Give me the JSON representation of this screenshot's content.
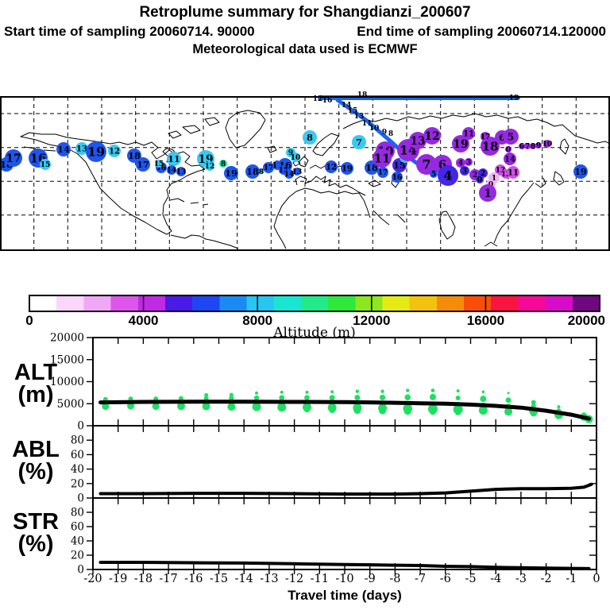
{
  "header": {
    "title": "Retroplume summary for Shangdianzi_200607",
    "start_text": "Start time of sampling 20060714. 90000",
    "end_text": "End time of sampling 20060714.120000",
    "met_text": "Meteorological data used is ECMWF"
  },
  "colorbar": {
    "title": "Altitude (m)",
    "min": 0,
    "max": 20000,
    "tick_values": [
      0,
      4000,
      8000,
      12000,
      16000,
      20000
    ],
    "tick_labels": [
      "0",
      "4000",
      "8000",
      "12000",
      "16000",
      "20000"
    ],
    "divider_values": [
      4000,
      8000,
      12000,
      16000
    ],
    "segments": [
      "#ffffff",
      "#fad6fa",
      "#f0a8f4",
      "#dd55ea",
      "#c02ae4",
      "#4a1ae6",
      "#1e46f2",
      "#1a8af4",
      "#28c4f2",
      "#18e6d2",
      "#20ea8a",
      "#2ee83c",
      "#8ee61e",
      "#e6ea14",
      "#f4c20c",
      "#f48c08",
      "#f84e0a",
      "#fa1440",
      "#f80898",
      "#d80cc8",
      "#6e087e"
    ]
  },
  "map": {
    "bubble_colors": {
      "B": "#1e55ee",
      "C": "#38c9f2",
      "P": "#9628e2",
      "I": "#4326e6",
      "M": "#cf4fe8",
      "K": "#efb6f3",
      "G": "#12e6a4"
    },
    "bubbles": [
      [
        "18",
        8,
        207,
        9,
        "B"
      ],
      [
        "17",
        17,
        199,
        11,
        "B"
      ],
      [
        "16",
        48,
        199,
        12,
        "B"
      ],
      [
        "15",
        57,
        207,
        7,
        "C"
      ],
      [
        "14",
        80,
        188,
        9,
        "B"
      ],
      [
        "13",
        103,
        187,
        8,
        "C"
      ],
      [
        "19",
        121,
        191,
        13,
        "B"
      ],
      [
        "12",
        144,
        190,
        8,
        "C"
      ],
      [
        "18",
        169,
        196,
        9,
        "B"
      ],
      [
        "17",
        180,
        207,
        9,
        "B"
      ],
      [
        "11",
        219,
        200,
        9,
        "C"
      ],
      [
        "16",
        203,
        211,
        7,
        "B"
      ],
      [
        "15",
        200,
        206,
        5,
        "C"
      ],
      [
        "14",
        216,
        214,
        6,
        "B"
      ],
      [
        "13",
        228,
        216,
        6,
        "B"
      ],
      [
        "19",
        259,
        200,
        11,
        "C"
      ],
      [
        "12",
        264,
        209,
        6,
        "C"
      ],
      [
        "8",
        281,
        206,
        5,
        "G"
      ],
      [
        "19",
        291,
        218,
        9,
        "B"
      ],
      [
        "18",
        318,
        216,
        9,
        "B"
      ],
      [
        "8",
        329,
        216,
        3,
        "G"
      ],
      [
        "17",
        338,
        211,
        7,
        "B"
      ],
      [
        "11",
        349,
        208,
        6,
        "B"
      ],
      [
        "16",
        359,
        208,
        9,
        "B"
      ],
      [
        "15",
        357,
        214,
        6,
        "B"
      ],
      [
        "14",
        364,
        219,
        6,
        "B"
      ],
      [
        "13",
        374,
        216,
        5,
        "B"
      ],
      [
        "9",
        366,
        192,
        6,
        "C"
      ],
      [
        "10",
        372,
        198,
        6,
        "C"
      ],
      [
        "8",
        390,
        173,
        9,
        "C"
      ],
      [
        "12",
        417,
        210,
        8,
        "B"
      ],
      [
        "19",
        437,
        212,
        8,
        "B"
      ],
      [
        "7",
        452,
        179,
        9,
        "C"
      ],
      [
        "18",
        468,
        211,
        9,
        "B"
      ],
      [
        "17",
        482,
        217,
        7,
        "B"
      ],
      [
        "10",
        485,
        190,
        12,
        "P"
      ],
      [
        "11",
        481,
        199,
        12,
        "P"
      ],
      [
        "15",
        503,
        208,
        9,
        "I"
      ],
      [
        "16",
        500,
        223,
        7,
        "B"
      ],
      [
        "5",
        510,
        198,
        7,
        "C"
      ],
      [
        "14",
        514,
        189,
        14,
        "P"
      ],
      [
        "13",
        526,
        177,
        11,
        "P"
      ],
      [
        "12",
        544,
        171,
        11,
        "P"
      ],
      [
        "7",
        537,
        207,
        13,
        "P"
      ],
      [
        "6",
        557,
        207,
        12,
        "P"
      ],
      [
        "5",
        546,
        219,
        5,
        "B"
      ],
      [
        "4",
        564,
        221,
        13,
        "I"
      ],
      [
        "4",
        580,
        205,
        6,
        "P"
      ],
      [
        "3",
        590,
        204,
        5,
        "P"
      ],
      [
        "3",
        585,
        215,
        6,
        "I"
      ],
      [
        "2",
        598,
        220,
        7,
        "P"
      ],
      [
        "19",
        580,
        181,
        11,
        "P"
      ],
      [
        "11",
        590,
        168,
        8,
        "P"
      ],
      [
        "18",
        617,
        184,
        12,
        "P"
      ],
      [
        "17",
        611,
        172,
        6,
        "P"
      ],
      [
        "6",
        632,
        173,
        9,
        "P"
      ],
      [
        "5",
        643,
        172,
        10,
        "P"
      ],
      [
        "0",
        640,
        188,
        4,
        "P"
      ],
      [
        "6",
        657,
        184,
        4,
        "P"
      ],
      [
        "7",
        664,
        184,
        4,
        "P"
      ],
      [
        "8",
        671,
        184,
        4,
        "P"
      ],
      [
        "9",
        678,
        183,
        4,
        "P"
      ],
      [
        "10",
        689,
        181,
        5,
        "P"
      ],
      [
        "14",
        642,
        200,
        8,
        "P"
      ],
      [
        "13",
        630,
        214,
        7,
        "M"
      ],
      [
        "12",
        637,
        219,
        6,
        "M"
      ],
      [
        "11",
        646,
        217,
        8,
        "M"
      ],
      [
        "2",
        608,
        218,
        6,
        "I"
      ],
      [
        "1",
        622,
        224,
        7,
        "K"
      ],
      [
        "0",
        618,
        232,
        6,
        "K"
      ],
      [
        "1",
        614,
        243,
        11,
        "P"
      ],
      [
        "0",
        604,
        226,
        5,
        "I"
      ],
      [
        "19",
        731,
        216,
        9,
        "B"
      ]
    ],
    "trajectory": {
      "color": "#1b64ee",
      "main": [
        [
          403,
          123
        ],
        [
          652,
          123
        ]
      ],
      "branch": [
        [
          425,
          126
        ],
        [
          445,
          140
        ],
        [
          462,
          152
        ],
        [
          478,
          166
        ],
        [
          492,
          178
        ],
        [
          505,
          190
        ],
        [
          516,
          199
        ],
        [
          527,
          207
        ],
        [
          538,
          214
        ]
      ],
      "labels": [
        [
          "12",
          400,
          127
        ],
        [
          "16",
          412,
          129
        ],
        [
          "18",
          456,
          122
        ],
        [
          "19",
          647,
          126
        ],
        [
          "14",
          436,
          135
        ],
        [
          "15",
          444,
          142
        ],
        [
          "13",
          452,
          149
        ],
        [
          "11",
          462,
          158
        ],
        [
          "10",
          471,
          164
        ],
        [
          "9",
          484,
          169
        ],
        [
          "8",
          492,
          171
        ]
      ]
    }
  },
  "chart_data": {
    "type": "multi-panel-timeseries",
    "xaxis": {
      "label": "Travel time (days)",
      "lim": [
        -20,
        0
      ],
      "ticks": [
        -20,
        -19,
        -18,
        -17,
        -16,
        -15,
        -14,
        -13,
        -12,
        -11,
        -10,
        -9,
        -8,
        -7,
        -6,
        -5,
        -4,
        -3,
        -2,
        -1,
        0
      ]
    },
    "panels": [
      {
        "id": "alt",
        "type": "line+scatter",
        "label_lines": [
          "ALT",
          "(m)"
        ],
        "ylim": [
          0,
          20000
        ],
        "yticks": [
          0,
          5000,
          10000,
          15000,
          20000
        ],
        "line_x": [
          -19.7,
          -18,
          -16,
          -14,
          -12,
          -10,
          -9,
          -8,
          -7,
          -6,
          -5,
          -4,
          -3,
          -2,
          -1,
          -0.3
        ],
        "line_y": [
          5300,
          5400,
          5450,
          5450,
          5400,
          5350,
          5300,
          5200,
          5100,
          5000,
          4800,
          4500,
          4100,
          3400,
          2500,
          1600
        ],
        "dot_color": "#1fdf63",
        "dots": [
          [
            -19.5,
            6000,
            3
          ],
          [
            -19.5,
            5200,
            3.5
          ],
          [
            -19.5,
            4400,
            4.5
          ],
          [
            -18.5,
            6100,
            3
          ],
          [
            -18.5,
            5300,
            3.5
          ],
          [
            -18.5,
            4500,
            4.5
          ],
          [
            -17.5,
            6100,
            3
          ],
          [
            -17.5,
            5300,
            3.5
          ],
          [
            -17.5,
            4400,
            4.5
          ],
          [
            -16.5,
            6200,
            3
          ],
          [
            -16.5,
            5400,
            3.5
          ],
          [
            -16.5,
            4450,
            5
          ],
          [
            -15.5,
            6950,
            2.5
          ],
          [
            -15.5,
            6200,
            3
          ],
          [
            -15.5,
            5350,
            3.5
          ],
          [
            -15.5,
            4400,
            5
          ],
          [
            -14.5,
            7000,
            2.5
          ],
          [
            -14.5,
            6250,
            3.2
          ],
          [
            -14.5,
            5300,
            3.5
          ],
          [
            -14.5,
            4300,
            5
          ],
          [
            -13.5,
            7400,
            2
          ],
          [
            -13.5,
            6300,
            3.2
          ],
          [
            -13.5,
            5300,
            3.5
          ],
          [
            -13.5,
            4300,
            5.5
          ],
          [
            -12.5,
            7600,
            2
          ],
          [
            -12.5,
            6350,
            3.4
          ],
          [
            -12.5,
            5200,
            3.5
          ],
          [
            -12.5,
            4200,
            5.5
          ],
          [
            -11.5,
            7600,
            2
          ],
          [
            -11.5,
            6350,
            3.4
          ],
          [
            -11.5,
            5200,
            3.5
          ],
          [
            -11.5,
            4200,
            5.5
          ],
          [
            -11.5,
            3650,
            3.5
          ],
          [
            -10.5,
            7700,
            2
          ],
          [
            -10.5,
            6350,
            3.5
          ],
          [
            -10.5,
            5100,
            3.5
          ],
          [
            -10.5,
            4100,
            5.5
          ],
          [
            -10.5,
            3600,
            4
          ],
          [
            -9.5,
            7800,
            2.2
          ],
          [
            -9.5,
            6400,
            3.5
          ],
          [
            -9.5,
            5100,
            3.5
          ],
          [
            -9.5,
            4100,
            5.5
          ],
          [
            -9.5,
            3500,
            4.5
          ],
          [
            -8.5,
            7800,
            2.2
          ],
          [
            -8.5,
            6400,
            3.6
          ],
          [
            -8.5,
            5000,
            3.5
          ],
          [
            -8.5,
            4000,
            5.5
          ],
          [
            -8.5,
            3400,
            4.5
          ],
          [
            -7.5,
            8000,
            2.2
          ],
          [
            -7.5,
            6450,
            3.8
          ],
          [
            -7.5,
            5000,
            3.5
          ],
          [
            -7.5,
            3900,
            5.8
          ],
          [
            -7.5,
            3300,
            4.5
          ],
          [
            -6.5,
            8000,
            2.4
          ],
          [
            -6.5,
            6500,
            4
          ],
          [
            -6.5,
            4900,
            3.5
          ],
          [
            -6.5,
            3800,
            6
          ],
          [
            -6.5,
            3200,
            4
          ],
          [
            -5.5,
            7900,
            2
          ],
          [
            -5.5,
            6300,
            3
          ],
          [
            -5.5,
            4700,
            4
          ],
          [
            -5.5,
            3700,
            6
          ],
          [
            -5.5,
            3100,
            4
          ],
          [
            -4.5,
            7700,
            1.8
          ],
          [
            -4.5,
            6100,
            4
          ],
          [
            -4.5,
            4500,
            4
          ],
          [
            -4.5,
            3500,
            5.5
          ],
          [
            -3.5,
            7400,
            1.5
          ],
          [
            -3.5,
            5800,
            3.5
          ],
          [
            -3.5,
            4200,
            4.5
          ],
          [
            -3.5,
            3200,
            5
          ],
          [
            -2.5,
            5300,
            3
          ],
          [
            -2.5,
            4500,
            3
          ],
          [
            -2.5,
            3300,
            5.5
          ],
          [
            -2.5,
            2800,
            4
          ],
          [
            -1.5,
            4300,
            2
          ],
          [
            -1.5,
            3400,
            3
          ],
          [
            -1.5,
            2500,
            5.5
          ],
          [
            -1.5,
            2200,
            4
          ],
          [
            -0.5,
            2600,
            2.5
          ],
          [
            -0.5,
            2000,
            5
          ],
          [
            -0.3,
            1500,
            5
          ]
        ]
      },
      {
        "id": "abl",
        "type": "line",
        "label_lines": [
          "ABL",
          "(%)"
        ],
        "ylim": [
          0,
          100
        ],
        "yticks": [
          0,
          20,
          40,
          60,
          80
        ],
        "line_x": [
          -19.7,
          -18,
          -16,
          -14,
          -12,
          -10,
          -9,
          -8,
          -7,
          -6,
          -5,
          -4,
          -3,
          -2,
          -1,
          -0.5,
          -0.2
        ],
        "line_y": [
          6,
          6,
          6.5,
          6.5,
          6,
          5.5,
          5.5,
          5.5,
          6,
          7,
          9.5,
          12,
          13,
          13,
          13.5,
          15,
          19
        ]
      },
      {
        "id": "str",
        "type": "line",
        "label_lines": [
          "STR",
          "(%)"
        ],
        "ylim": [
          0,
          100
        ],
        "yticks": [
          0,
          20,
          40,
          60,
          80
        ],
        "line_x": [
          -19.7,
          -18,
          -16,
          -14,
          -12,
          -10,
          -9,
          -8,
          -7,
          -6,
          -5,
          -4,
          -3,
          -2,
          -1,
          -0.3
        ],
        "line_y": [
          10,
          10,
          9.5,
          9,
          8,
          7,
          6.5,
          6,
          5.5,
          4.5,
          4,
          3,
          2.5,
          2,
          1.5,
          1.2
        ]
      }
    ]
  }
}
